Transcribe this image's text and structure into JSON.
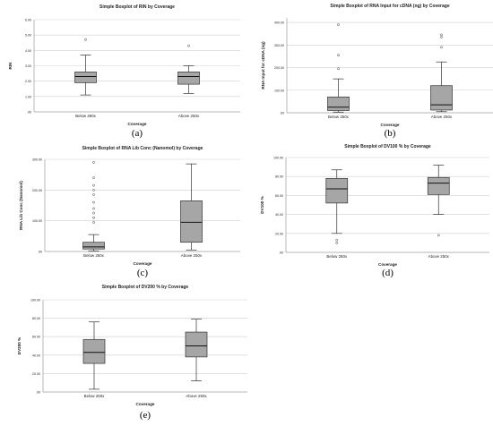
{
  "chart_data": [
    {
      "type": "box",
      "panel_label": "(a)",
      "title": "Simple Boxplot of RIN by Coverage",
      "xlabel": "Coverage",
      "ylabel": "RIN",
      "ylim": [
        0,
        6
      ],
      "yticks": [
        0,
        1,
        2,
        3,
        4,
        5,
        6
      ],
      "ytick_labels": [
        ".00",
        "1.00",
        "2.00",
        "3.00",
        "4.00",
        "5.00",
        "6.00"
      ],
      "categories": [
        "Below 250x",
        "Above 250x"
      ],
      "boxes": [
        {
          "min": 1.1,
          "q1": 1.9,
          "median": 2.3,
          "q3": 2.6,
          "max": 3.7,
          "outliers": [
            4.7
          ]
        },
        {
          "min": 1.2,
          "q1": 1.8,
          "median": 2.3,
          "q3": 2.6,
          "max": 3.0,
          "outliers": [
            4.3
          ]
        }
      ],
      "grid": true
    },
    {
      "type": "box",
      "panel_label": "(b)",
      "title": "Simple Boxplot of RNA Input for cDNA (ng) by Coverage",
      "xlabel": "Coverage",
      "ylabel": "RNA Input for cDNA (ng)",
      "ylim": [
        0,
        420
      ],
      "yticks": [
        0,
        100,
        200,
        300,
        400
      ],
      "ytick_labels": [
        ".00",
        "100.00",
        "200.00",
        "300.00",
        "400.00"
      ],
      "categories": [
        "Below 250x",
        "Above 250x"
      ],
      "boxes": [
        {
          "min": 3,
          "q1": 10,
          "median": 25,
          "q3": 70,
          "max": 150,
          "outliers": [
            195,
            255,
            390
          ]
        },
        {
          "min": 5,
          "q1": 12,
          "median": 35,
          "q3": 120,
          "max": 225,
          "outliers": [
            290,
            335,
            345
          ]
        }
      ],
      "grid": true
    },
    {
      "type": "box",
      "panel_label": "(c)",
      "title": "Simple Boxplot of RNA Lib Conc (Nanomol) by Coverage",
      "xlabel": "Coverage",
      "ylabel": "RNA Lib Conc (Nanomol)",
      "ylim": [
        0,
        300
      ],
      "yticks": [
        0,
        100,
        200,
        300
      ],
      "ytick_labels": [
        ".00",
        "100.00",
        "200.00",
        "300.00"
      ],
      "categories": [
        "Below 250x",
        "Above 250x"
      ],
      "boxes": [
        {
          "min": 2,
          "q1": 8,
          "median": 15,
          "q3": 30,
          "max": 55,
          "outliers": [
            95,
            110,
            125,
            140,
            160,
            185,
            200,
            215,
            240,
            290
          ]
        },
        {
          "min": 5,
          "q1": 30,
          "median": 95,
          "q3": 165,
          "max": 285,
          "outliers": []
        }
      ],
      "grid": true
    },
    {
      "type": "box",
      "panel_label": "(d)",
      "title": "Simple Boxplot of DV100 % by Coverage",
      "xlabel": "Coverage",
      "ylabel": "DV100 %",
      "ylim": [
        0,
        100
      ],
      "yticks": [
        0,
        20,
        40,
        60,
        80,
        100
      ],
      "ytick_labels": [
        ".00",
        "20.00",
        "40.00",
        "60.00",
        "80.00",
        "100.00"
      ],
      "categories": [
        "Below 250x",
        "Above 250x"
      ],
      "boxes": [
        {
          "min": 20,
          "q1": 52,
          "median": 67,
          "q3": 78,
          "max": 87,
          "outliers": [
            10,
            13
          ]
        },
        {
          "min": 40,
          "q1": 61,
          "median": 73,
          "q3": 79,
          "max": 92,
          "outliers": [
            18
          ]
        }
      ],
      "grid": true
    },
    {
      "type": "box",
      "panel_label": "(e)",
      "title": "Simple Boxplot of DV200 % by Coverage",
      "xlabel": "Coverage",
      "ylabel": "DV200 %",
      "ylim": [
        0,
        100
      ],
      "yticks": [
        0,
        20,
        40,
        60,
        80,
        100
      ],
      "ytick_labels": [
        ".00",
        "20.00",
        "40.00",
        "60.00",
        "80.00",
        "100.00"
      ],
      "categories": [
        "Below 250x",
        "Above 250x"
      ],
      "boxes": [
        {
          "min": 3,
          "q1": 31,
          "median": 43,
          "q3": 57,
          "max": 76,
          "outliers": []
        },
        {
          "min": 12,
          "q1": 38,
          "median": 50,
          "q3": 65,
          "max": 79,
          "outliers": []
        }
      ],
      "grid": true
    }
  ],
  "colors": {
    "box_fill": "#a6a6a6",
    "box_stroke": "#333333",
    "grid": "#cfcfcf",
    "text": "#222222"
  }
}
